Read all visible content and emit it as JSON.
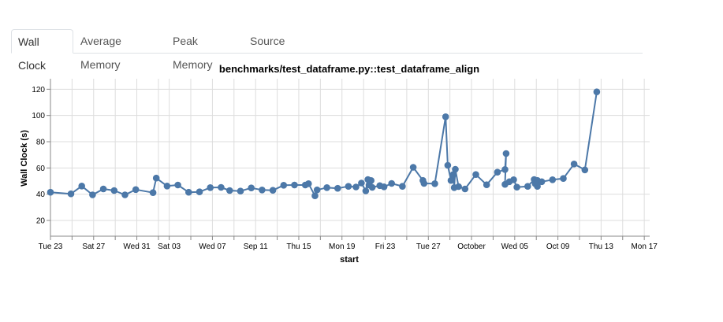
{
  "tabs": [
    {
      "label": "Wall Clock",
      "active": true
    },
    {
      "label": "Average Memory",
      "active": false
    },
    {
      "label": "Peak Memory",
      "active": false
    },
    {
      "label": "Source",
      "active": false
    }
  ],
  "colors": {
    "series": "#4c78a8",
    "grid": "#dddddd",
    "axis": "#888888"
  },
  "chart_data": {
    "type": "line",
    "title": "benchmarks/test_dataframe.py::test_dataframe_align",
    "xlabel": "start",
    "ylabel": "Wall Clock (s)",
    "x_unit": "days since Aug 23",
    "xlim": [
      0,
      55.5
    ],
    "ylim": [
      8,
      128
    ],
    "yticks": [
      20,
      40,
      60,
      80,
      100,
      120
    ],
    "xticks": [
      {
        "x": 0,
        "label": "Tue 23"
      },
      {
        "x": 4,
        "label": "Sat 27"
      },
      {
        "x": 8,
        "label": "Wed 31"
      },
      {
        "x": 11,
        "label": "Sat 03"
      },
      {
        "x": 15,
        "label": "Wed 07"
      },
      {
        "x": 19,
        "label": "Sep 11"
      },
      {
        "x": 23,
        "label": "Thu 15"
      },
      {
        "x": 27,
        "label": "Mon 19"
      },
      {
        "x": 31,
        "label": "Fri 23"
      },
      {
        "x": 35,
        "label": "Tue 27"
      },
      {
        "x": 39,
        "label": "October"
      },
      {
        "x": 43,
        "label": "Wed 05"
      },
      {
        "x": 47,
        "label": "Oct 09"
      },
      {
        "x": 51,
        "label": "Thu 13"
      },
      {
        "x": 55,
        "label": "Mon 17"
      }
    ],
    "minor_xticks": [
      2,
      6,
      10,
      13,
      17,
      21,
      25,
      29,
      33,
      37,
      41,
      45,
      49,
      53
    ],
    "series": [
      {
        "name": "Wall Clock",
        "points": [
          [
            0.0,
            41.5
          ],
          [
            1.9,
            40.3
          ],
          [
            2.9,
            46.2
          ],
          [
            3.9,
            39.5
          ],
          [
            4.9,
            44.0
          ],
          [
            5.9,
            42.8
          ],
          [
            6.9,
            39.5
          ],
          [
            7.9,
            43.5
          ],
          [
            9.5,
            41.2
          ],
          [
            9.8,
            52.3
          ],
          [
            10.8,
            46.2
          ],
          [
            11.8,
            47.0
          ],
          [
            12.8,
            41.5
          ],
          [
            13.8,
            41.8
          ],
          [
            14.8,
            45.0
          ],
          [
            15.8,
            45.2
          ],
          [
            16.6,
            42.8
          ],
          [
            17.6,
            42.4
          ],
          [
            18.6,
            44.8
          ],
          [
            19.6,
            43.2
          ],
          [
            20.6,
            43.0
          ],
          [
            21.6,
            46.8
          ],
          [
            22.6,
            47.0
          ],
          [
            23.6,
            47.0
          ],
          [
            23.9,
            48.0
          ],
          [
            24.5,
            38.8
          ],
          [
            24.7,
            43.3
          ],
          [
            25.6,
            45.0
          ],
          [
            26.6,
            44.5
          ],
          [
            27.6,
            46.0
          ],
          [
            28.3,
            45.5
          ],
          [
            28.8,
            48.5
          ],
          [
            29.2,
            42.5
          ],
          [
            29.4,
            51.2
          ],
          [
            29.5,
            47.0
          ],
          [
            29.7,
            50.4
          ],
          [
            29.8,
            45.2
          ],
          [
            30.5,
            46.5
          ],
          [
            30.9,
            45.6
          ],
          [
            31.6,
            48.2
          ],
          [
            32.6,
            46.0
          ],
          [
            33.6,
            60.5
          ],
          [
            34.5,
            50.5
          ],
          [
            34.6,
            48.2
          ],
          [
            35.6,
            48.0
          ],
          [
            36.6,
            99.0
          ],
          [
            36.8,
            62.0
          ],
          [
            37.1,
            50.5
          ],
          [
            37.3,
            55.0
          ],
          [
            37.4,
            45.0
          ],
          [
            37.5,
            59.0
          ],
          [
            37.8,
            45.8
          ],
          [
            38.4,
            44.0
          ],
          [
            39.4,
            55.0
          ],
          [
            40.4,
            47.2
          ],
          [
            41.4,
            56.8
          ],
          [
            42.1,
            58.8
          ],
          [
            42.2,
            71.0
          ],
          [
            42.1,
            47.5
          ],
          [
            42.5,
            49.5
          ],
          [
            42.9,
            51.0
          ],
          [
            43.2,
            45.4
          ],
          [
            44.2,
            46.0
          ],
          [
            44.8,
            51.2
          ],
          [
            45.1,
            50.5
          ],
          [
            44.9,
            48.0
          ],
          [
            45.1,
            46.0
          ],
          [
            45.5,
            49.5
          ],
          [
            46.5,
            51.0
          ],
          [
            47.5,
            52.0
          ],
          [
            48.5,
            63.0
          ],
          [
            49.5,
            58.5
          ],
          [
            50.6,
            118.0
          ]
        ]
      }
    ],
    "grid": true
  }
}
